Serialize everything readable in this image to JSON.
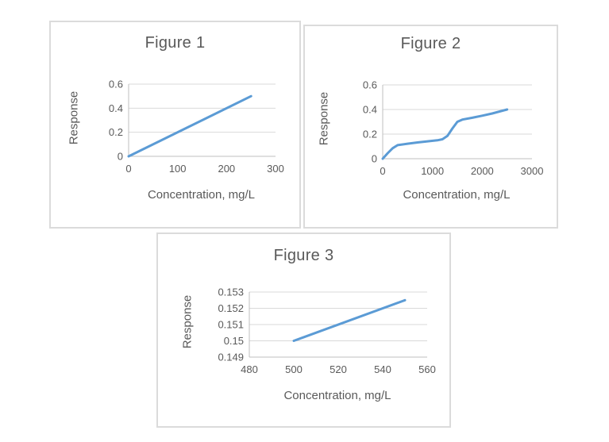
{
  "page": {
    "background": "#ffffff"
  },
  "chart_data": [
    {
      "type": "line",
      "title": "Figure 1",
      "xlabel": "Concentration, mg/L",
      "ylabel": "Response",
      "xlim": [
        0,
        300
      ],
      "ylim": [
        0,
        0.6
      ],
      "xticks": [
        0,
        100,
        200,
        300
      ],
      "xtick_labels": [
        "0",
        "100",
        "200",
        "300"
      ],
      "yticks": [
        0,
        0.2,
        0.4,
        0.6
      ],
      "ytick_labels": [
        "0",
        "0.2",
        "0.4",
        "0.6"
      ],
      "grid": true,
      "legend": "none",
      "series": [
        {
          "name": "Response",
          "points": [
            [
              0,
              0
            ],
            [
              250,
              0.5
            ]
          ]
        }
      ],
      "line_color": "#5b9bd5",
      "grid_color": "#d9d9d9",
      "axis_color": "#bfbfbf",
      "text_color": "#595959"
    },
    {
      "type": "line",
      "title": "Figure 2",
      "xlabel": "Concentration, mg/L",
      "ylabel": "Response",
      "xlim": [
        0,
        3000
      ],
      "ylim": [
        0,
        0.6
      ],
      "xticks": [
        0,
        1000,
        2000,
        3000
      ],
      "xtick_labels": [
        "0",
        "1000",
        "2000",
        "3000"
      ],
      "yticks": [
        0,
        0.2,
        0.4,
        0.6
      ],
      "ytick_labels": [
        "0",
        "0.2",
        "0.4",
        "0.6"
      ],
      "grid": true,
      "legend": "none",
      "series": [
        {
          "name": "Response",
          "points": [
            [
              0,
              0
            ],
            [
              100,
              0.045
            ],
            [
              200,
              0.085
            ],
            [
              300,
              0.11
            ],
            [
              500,
              0.122
            ],
            [
              700,
              0.132
            ],
            [
              900,
              0.141
            ],
            [
              1100,
              0.15
            ],
            [
              1200,
              0.158
            ],
            [
              1300,
              0.185
            ],
            [
              1400,
              0.245
            ],
            [
              1500,
              0.3
            ],
            [
              1600,
              0.318
            ],
            [
              1800,
              0.333
            ],
            [
              2000,
              0.35
            ],
            [
              2200,
              0.368
            ],
            [
              2500,
              0.4
            ]
          ]
        }
      ],
      "line_color": "#5b9bd5",
      "grid_color": "#d9d9d9",
      "axis_color": "#bfbfbf",
      "text_color": "#595959"
    },
    {
      "type": "line",
      "title": "Figure 3",
      "xlabel": "Concentration, mg/L",
      "ylabel": "Response",
      "xlim": [
        480,
        560
      ],
      "ylim": [
        0.149,
        0.153
      ],
      "xticks": [
        480,
        500,
        520,
        540,
        560
      ],
      "xtick_labels": [
        "480",
        "500",
        "520",
        "540",
        "560"
      ],
      "yticks": [
        0.149,
        0.15,
        0.151,
        0.152,
        0.153
      ],
      "ytick_labels": [
        "0.149",
        "0.15",
        "0.151",
        "0.152",
        "0.153"
      ],
      "grid": true,
      "legend": "none",
      "series": [
        {
          "name": "Response",
          "points": [
            [
              500,
              0.15
            ],
            [
              550,
              0.1525
            ]
          ]
        }
      ],
      "line_color": "#5b9bd5",
      "grid_color": "#d9d9d9",
      "axis_color": "#bfbfbf",
      "text_color": "#595959"
    }
  ]
}
